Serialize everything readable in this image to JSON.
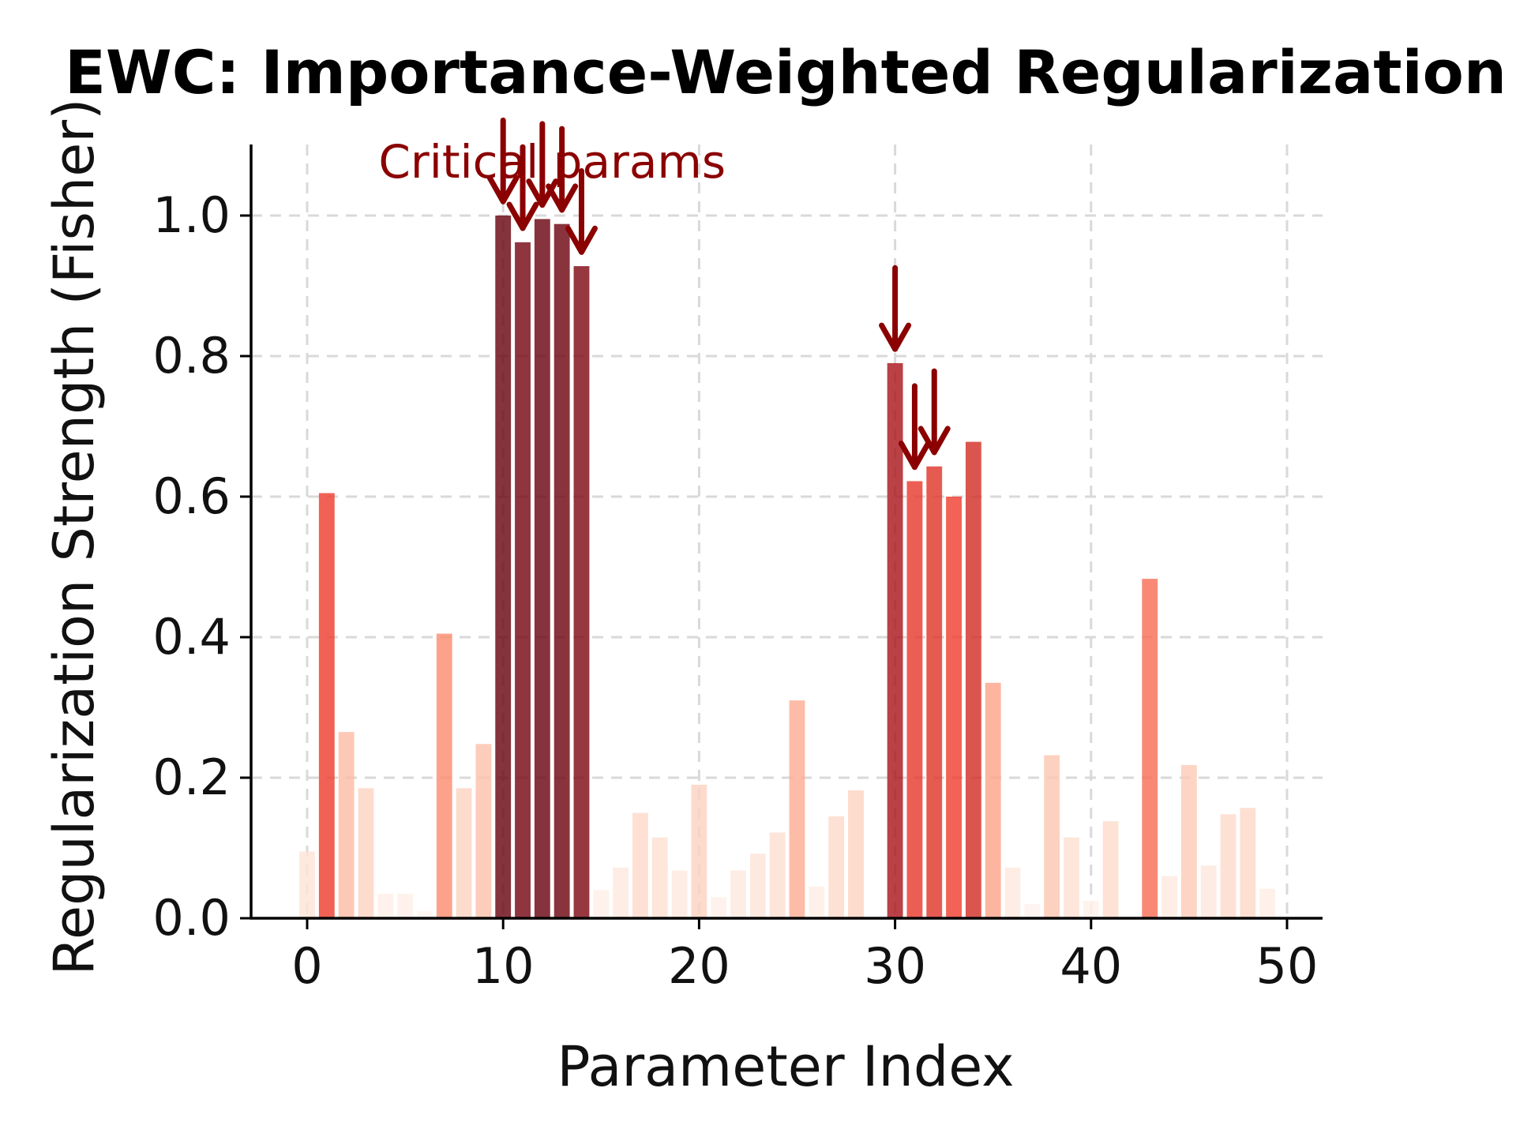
{
  "chart_data": {
    "type": "bar",
    "title": "EWC: Importance-Weighted Regularization",
    "xlabel": "Parameter Index",
    "ylabel": "Regularization Strength (Fisher)",
    "xlim": [
      -3,
      52
    ],
    "ylim": [
      0,
      1.1
    ],
    "xticks": [
      0,
      10,
      20,
      30,
      40,
      50
    ],
    "xtick_labels": [
      "0",
      "10",
      "20",
      "30",
      "40",
      "50"
    ],
    "yticks": [
      0.0,
      0.2,
      0.4,
      0.6,
      0.8,
      1.0
    ],
    "ytick_labels": [
      "0.0",
      "0.2",
      "0.4",
      "0.6",
      "0.8",
      "1.0"
    ],
    "grid": true,
    "x": [
      0,
      1,
      2,
      3,
      4,
      5,
      6,
      7,
      8,
      9,
      10,
      11,
      12,
      13,
      14,
      15,
      16,
      17,
      18,
      19,
      20,
      21,
      22,
      23,
      24,
      25,
      26,
      27,
      28,
      29,
      30,
      31,
      32,
      33,
      34,
      35,
      36,
      37,
      38,
      39,
      40,
      41,
      42,
      43,
      44,
      45,
      46,
      47,
      48,
      49
    ],
    "values": [
      0.095,
      0.605,
      0.265,
      0.185,
      0.035,
      0.035,
      0.01,
      0.405,
      0.185,
      0.248,
      1.0,
      0.962,
      0.995,
      0.988,
      0.928,
      0.04,
      0.072,
      0.15,
      0.115,
      0.068,
      0.19,
      0.03,
      0.068,
      0.092,
      0.122,
      0.31,
      0.045,
      0.145,
      0.182,
      0.0,
      0.79,
      0.622,
      0.643,
      0.6,
      0.678,
      0.335,
      0.072,
      0.02,
      0.232,
      0.115,
      0.025,
      0.138,
      0.0,
      0.483,
      0.06,
      0.218,
      0.075,
      0.148,
      0.157,
      0.042
    ],
    "critical_indices": [
      10,
      11,
      12,
      13,
      14,
      30,
      31,
      32
    ],
    "annotation": {
      "text": "Critical params",
      "color": "#8b0000"
    },
    "colors": {
      "colormap": [
        "#fff5f0",
        "#fdd0bc",
        "#fc8d6f",
        "#ef3b2c",
        "#a50f15",
        "#67000d"
      ],
      "arrow": "#8b0000",
      "grid": "#d9d9d9",
      "axis": "#000000"
    }
  }
}
